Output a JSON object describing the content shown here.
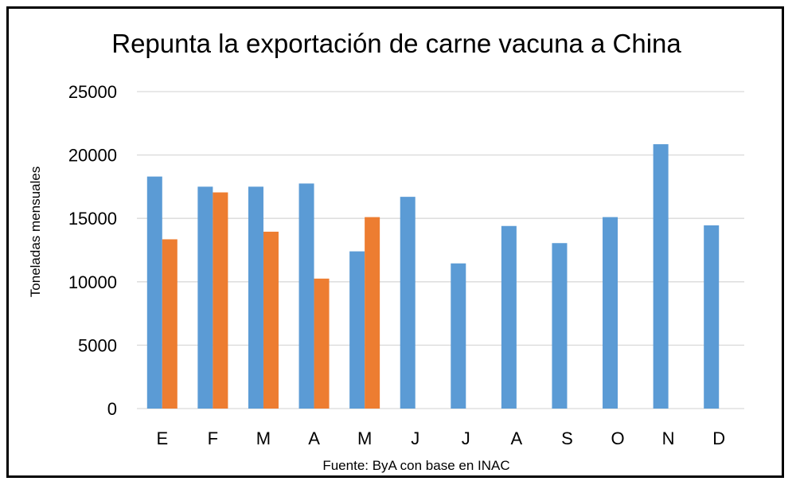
{
  "chart_data": {
    "type": "bar",
    "title": "Repunta la exportación de carne vacuna a China",
    "ylabel": "Toneladas mensuales",
    "xlabel": "",
    "source": "Fuente: ByA con base en INAC",
    "categories": [
      "E",
      "F",
      "M",
      "A",
      "M",
      "J",
      "J",
      "A",
      "S",
      "O",
      "N",
      "D"
    ],
    "ylim": [
      0,
      25000
    ],
    "yticks": [
      0,
      5000,
      10000,
      15000,
      20000,
      25000
    ],
    "grid": true,
    "legend": "none",
    "series": [
      {
        "color": "#5b9bd5",
        "values": [
          18300,
          17500,
          17500,
          17750,
          12400,
          16700,
          11450,
          14400,
          13050,
          15100,
          20850,
          14450
        ]
      },
      {
        "color": "#ed7d31",
        "values": [
          13350,
          17050,
          13950,
          10250,
          15100,
          null,
          null,
          null,
          null,
          null,
          null,
          null
        ]
      }
    ]
  }
}
